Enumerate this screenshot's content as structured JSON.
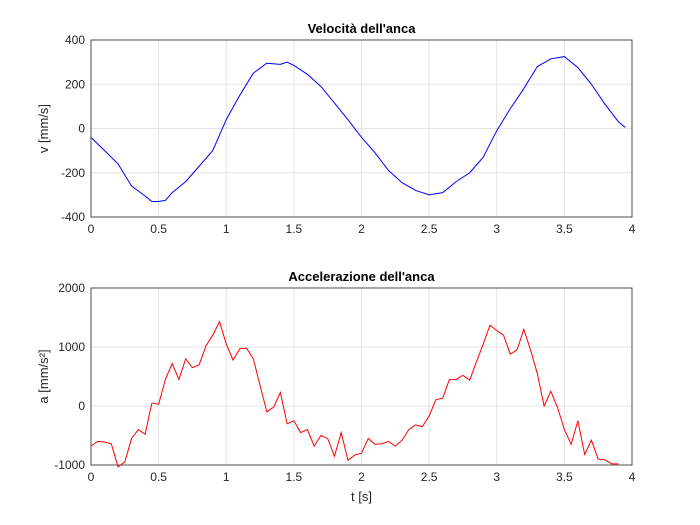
{
  "chart_data": [
    {
      "type": "line",
      "title": "Velocità dell'anca",
      "ylabel": "v [mm/s]",
      "x": [
        0,
        0.1,
        0.2,
        0.3,
        0.4,
        0.45,
        0.5,
        0.55,
        0.6,
        0.7,
        0.8,
        0.9,
        1.0,
        1.1,
        1.2,
        1.3,
        1.4,
        1.45,
        1.5,
        1.6,
        1.7,
        1.8,
        1.9,
        2.0,
        2.1,
        2.2,
        2.3,
        2.4,
        2.5,
        2.6,
        2.7,
        2.8,
        2.9,
        3.0,
        3.1,
        3.2,
        3.3,
        3.4,
        3.5,
        3.6,
        3.7,
        3.8,
        3.9,
        3.95
      ],
      "values": [
        -40,
        -100,
        -160,
        -260,
        -305,
        -330,
        -330,
        -325,
        -290,
        -240,
        -170,
        -100,
        40,
        150,
        250,
        295,
        290,
        300,
        285,
        245,
        190,
        115,
        40,
        -40,
        -110,
        -190,
        -245,
        -280,
        -300,
        -290,
        -240,
        -200,
        -130,
        -10,
        90,
        180,
        280,
        315,
        325,
        275,
        200,
        110,
        30,
        5
      ],
      "color": "#0000ff",
      "xlim": [
        0,
        4
      ],
      "xticks": [
        0,
        0.5,
        1,
        1.5,
        2,
        2.5,
        3,
        3.5,
        4
      ],
      "ylim": [
        -400,
        400
      ],
      "yticks": [
        -400,
        -200,
        0,
        200,
        400
      ],
      "grid": true
    },
    {
      "type": "line",
      "title": "Accelerazione dell'anca",
      "ylabel": "a [mm/s²]",
      "xlabel": "t [s]",
      "x": [
        0,
        0.05,
        0.1,
        0.15,
        0.2,
        0.25,
        0.3,
        0.35,
        0.4,
        0.45,
        0.5,
        0.55,
        0.6,
        0.65,
        0.7,
        0.75,
        0.8,
        0.85,
        0.9,
        0.95,
        1.0,
        1.05,
        1.1,
        1.15,
        1.2,
        1.25,
        1.3,
        1.35,
        1.4,
        1.45,
        1.5,
        1.55,
        1.6,
        1.65,
        1.7,
        1.75,
        1.8,
        1.85,
        1.9,
        1.95,
        2.0,
        2.05,
        2.1,
        2.15,
        2.2,
        2.25,
        2.3,
        2.35,
        2.4,
        2.45,
        2.5,
        2.55,
        2.6,
        2.65,
        2.7,
        2.75,
        2.8,
        2.85,
        2.9,
        2.95,
        3.0,
        3.05,
        3.1,
        3.15,
        3.2,
        3.25,
        3.3,
        3.35,
        3.4,
        3.45,
        3.5,
        3.55,
        3.6,
        3.65,
        3.7,
        3.75,
        3.8,
        3.85,
        3.9
      ],
      "values": [
        -680,
        -600,
        -610,
        -640,
        -1030,
        -950,
        -550,
        -400,
        -480,
        50,
        30,
        450,
        720,
        450,
        800,
        650,
        700,
        1020,
        1200,
        1430,
        1050,
        780,
        970,
        980,
        800,
        350,
        -100,
        -20,
        230,
        -300,
        -250,
        -450,
        -400,
        -680,
        -500,
        -550,
        -850,
        -450,
        -920,
        -830,
        -800,
        -550,
        -650,
        -640,
        -600,
        -680,
        -580,
        -400,
        -320,
        -350,
        -170,
        110,
        130,
        450,
        450,
        520,
        440,
        750,
        1050,
        1370,
        1280,
        1200,
        880,
        950,
        1300,
        950,
        550,
        0,
        250,
        -30,
        -400,
        -650,
        -250,
        -820,
        -580,
        -900,
        -910,
        -980,
        -980
      ],
      "color": "#ff0000",
      "xlim": [
        0,
        4
      ],
      "xticks": [
        0,
        0.5,
        1,
        1.5,
        2,
        2.5,
        3,
        3.5,
        4
      ],
      "ylim": [
        -1000,
        2000
      ],
      "yticks": [
        -1000,
        0,
        1000,
        2000
      ],
      "grid": true
    }
  ]
}
